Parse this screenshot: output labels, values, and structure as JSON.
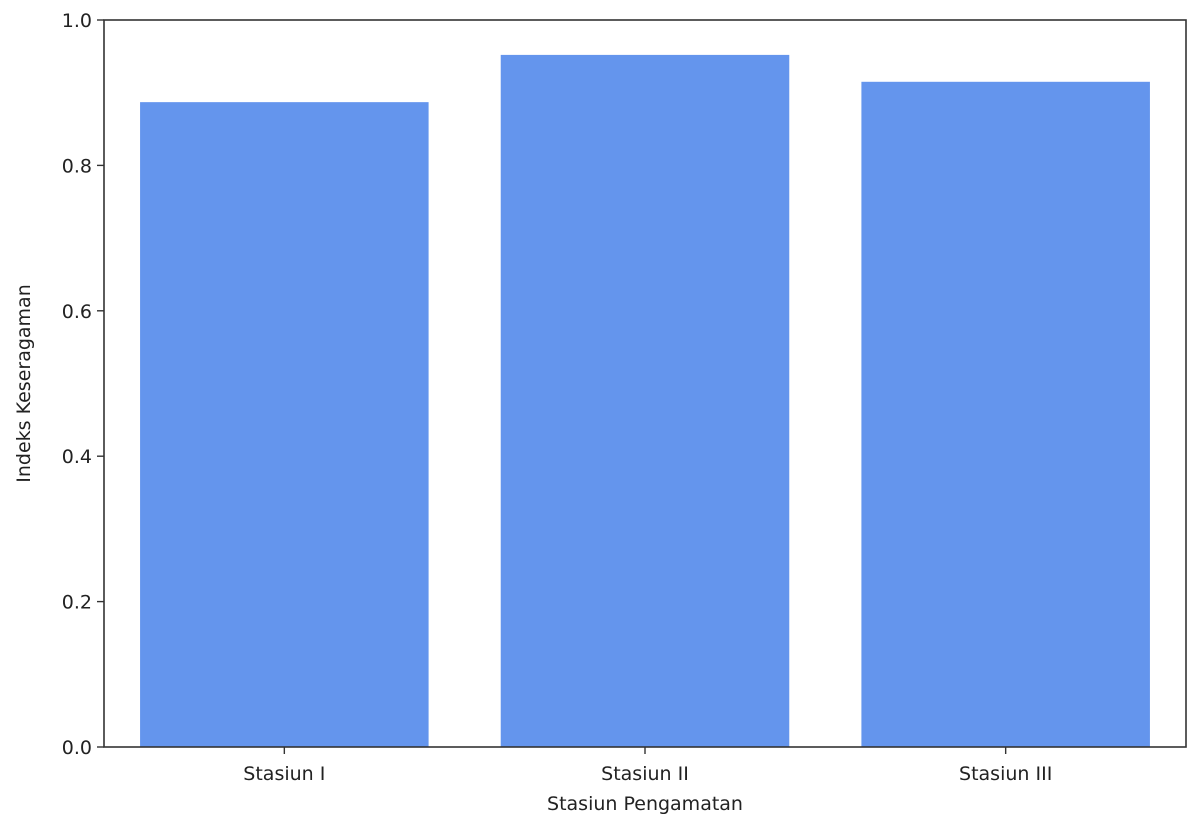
{
  "chart_data": {
    "type": "bar",
    "categories": [
      "Stasiun I",
      "Stasiun II",
      "Stasiun III"
    ],
    "values": [
      0.887,
      0.952,
      0.915
    ],
    "title": "",
    "xlabel": "Stasiun Pengamatan",
    "ylabel": "Indeks Keseragaman",
    "ylim": [
      0.0,
      1.0
    ],
    "yticks": [
      "0.0",
      "0.2",
      "0.4",
      "0.6",
      "0.8",
      "1.0"
    ],
    "grid": false,
    "bar_color": "#6495ED",
    "axis_color": "#333333"
  }
}
